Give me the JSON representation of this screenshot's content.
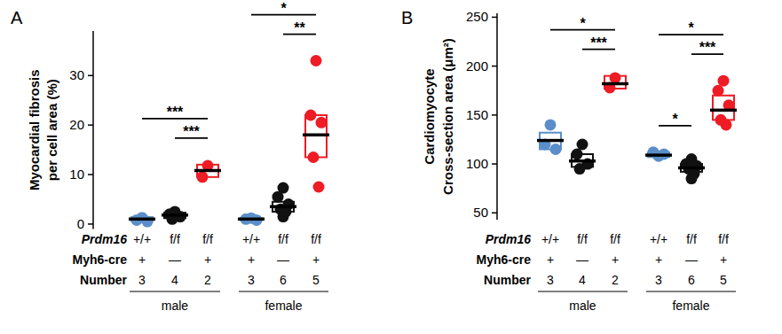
{
  "chart_data": [
    {
      "type": "box",
      "title": "A",
      "y_label": [
        "Myocardial fibrosis",
        "per cell area (%)"
      ],
      "ylim": [
        -1,
        39
      ],
      "yticks": [
        0,
        10,
        20,
        30
      ],
      "x_rows": [
        {
          "label": "Prdm16",
          "values": [
            "+/+",
            "f/f",
            "f/f",
            "+/+",
            "f/f",
            "f/f"
          ]
        },
        {
          "label": "Myh6-cre",
          "values": [
            "+",
            "—",
            "+",
            "+",
            "—",
            "+"
          ]
        },
        {
          "label": "Number",
          "values": [
            3,
            4,
            2,
            3,
            6,
            5
          ]
        }
      ],
      "sex_labels": [
        "male",
        "female"
      ],
      "colors": [
        "#5b8ec9",
        "#111111",
        "#ee1c25",
        "#5b8ec9",
        "#111111",
        "#ee1c25"
      ],
      "points": [
        [
          1.3,
          0.8,
          0.5
        ],
        [
          2.5,
          2.0,
          1.5,
          1.0
        ],
        [
          11.8,
          9.5
        ],
        [
          1.2,
          1.0,
          0.8
        ],
        [
          7.3,
          5.5,
          4.0,
          3.0,
          2.5,
          1.5
        ],
        [
          33,
          22,
          20.5,
          13.5,
          7.5
        ]
      ],
      "box": [
        {
          "low": 0.6,
          "median": 1.0,
          "high": 1.4
        },
        {
          "low": 1.2,
          "median": 1.8,
          "high": 2.3
        },
        {
          "low": 9.5,
          "median": 10.8,
          "high": 12
        },
        {
          "low": 0.8,
          "median": 1.0,
          "high": 1.2
        },
        {
          "low": 2.5,
          "median": 3.5,
          "high": 4.5
        },
        {
          "low": 13.5,
          "median": 18,
          "high": 22
        }
      ],
      "significance": [
        {
          "from": 0,
          "to": 2,
          "label": "***"
        },
        {
          "from": 1,
          "to": 2,
          "label": "***"
        },
        {
          "from": 3,
          "to": 5,
          "label": "*"
        },
        {
          "from": 4,
          "to": 5,
          "label": "**"
        }
      ]
    },
    {
      "type": "box",
      "title": "B",
      "y_label": [
        "Cardiomyocyte",
        "Cross-section  area (μm²)"
      ],
      "ylim": [
        43,
        254
      ],
      "yticks": [
        50,
        100,
        150,
        200,
        250
      ],
      "x_rows": [
        {
          "label": "Prdm16",
          "values": [
            "+/+",
            "f/f",
            "f/f",
            "+/+",
            "f/f",
            "f/f"
          ]
        },
        {
          "label": "Myh6-cre",
          "values": [
            "+",
            "—",
            "+",
            "+",
            "—",
            "+"
          ]
        },
        {
          "label": "Number",
          "values": [
            3,
            4,
            2,
            3,
            6,
            5
          ]
        }
      ],
      "sex_labels": [
        "male",
        "female"
      ],
      "colors": [
        "#5b8ec9",
        "#111111",
        "#ee1c25",
        "#5b8ec9",
        "#111111",
        "#ee1c25"
      ],
      "points": [
        [
          140,
          120,
          115
        ],
        [
          120,
          110,
          100,
          95
        ],
        [
          188,
          178
        ],
        [
          108,
          112,
          110
        ],
        [
          105,
          100,
          98,
          95,
          90,
          85
        ],
        [
          185,
          175,
          160,
          145,
          140
        ]
      ],
      "box": [
        {
          "low": 115,
          "median": 124,
          "high": 132
        },
        {
          "low": 97,
          "median": 103,
          "high": 110
        },
        {
          "low": 177,
          "median": 182,
          "high": 190
        },
        {
          "low": 107,
          "median": 109,
          "high": 112
        },
        {
          "low": 92,
          "median": 96,
          "high": 100
        },
        {
          "low": 145,
          "median": 155,
          "high": 170
        }
      ],
      "significance": [
        {
          "from": 0,
          "to": 2,
          "label": "*"
        },
        {
          "from": 1,
          "to": 2,
          "label": "***"
        },
        {
          "from": 3,
          "to": 4,
          "label": "*"
        },
        {
          "from": 3,
          "to": 5,
          "label": "*"
        },
        {
          "from": 4,
          "to": 5,
          "label": "***"
        }
      ]
    }
  ]
}
